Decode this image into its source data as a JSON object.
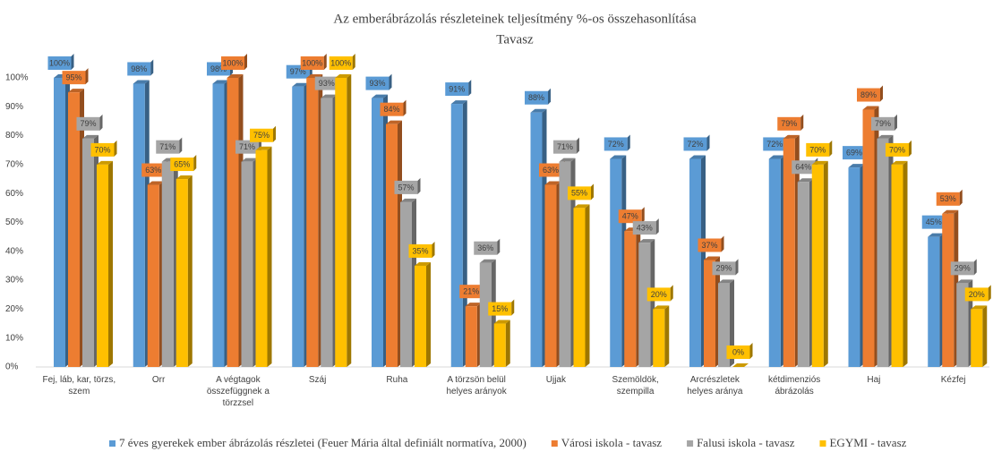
{
  "chart_data": {
    "type": "bar",
    "title": "Az emberábrázolás részleteinek teljesítmény %-os összehasonlítása",
    "subtitle": "Tavasz",
    "categories": [
      "Fej, láb, kar, törzs, szem",
      "Orr",
      "A végtagok összefüggnek a törzzsel",
      "Száj",
      "Ruha",
      "A törzsön belül helyes arányok",
      "Ujjak",
      "Szemöldök, szempilla",
      "Arcrészletek helyes aránya",
      "kétdimenziós ábrázolás",
      "Haj",
      "Kézfej"
    ],
    "series": [
      {
        "name": "7 éves gyerekek ember ábrázolás részletei (Feuer Mária által definiált normatíva, 2000)",
        "color": "#5b9bd5",
        "values": [
          100,
          98,
          98,
          97,
          93,
          91,
          88,
          72,
          72,
          72,
          69,
          45
        ],
        "value_labels": [
          "100%",
          "98%",
          "98%",
          "97%",
          "93%",
          "91%",
          "88%",
          "72%",
          "72%",
          "72%",
          "69%",
          "45%"
        ]
      },
      {
        "name": "Városi iskola - tavasz",
        "color": "#ed7d31",
        "values": [
          95,
          63,
          100,
          100,
          84,
          21,
          63,
          47,
          37,
          79,
          89,
          53
        ],
        "value_labels": [
          "95%",
          "63%",
          "100%",
          "100%",
          "84%",
          "21%",
          "63%",
          "47%",
          "37%",
          "79%",
          "89%",
          "53%"
        ]
      },
      {
        "name": "Falusi iskola - tavasz",
        "color": "#a5a5a5",
        "values": [
          79,
          71,
          71,
          93,
          57,
          36,
          71,
          43,
          29,
          64,
          79,
          29
        ],
        "value_labels": [
          "79%",
          "71%",
          "71%",
          "93%",
          "57%",
          "36%",
          "71%",
          "43%",
          "29%",
          "64%",
          "79%",
          "29%"
        ]
      },
      {
        "name": "EGYMI - tavasz",
        "color": "#ffc000",
        "values": [
          70,
          65,
          75,
          100,
          35,
          15,
          55,
          20,
          0,
          70,
          70,
          20
        ],
        "value_labels": [
          "70%",
          "65%",
          "75%",
          "100%",
          "35%",
          "15%",
          "55%",
          "20%",
          "0%",
          "70%",
          "70%",
          "20%"
        ]
      }
    ],
    "ylim": [
      0,
      100
    ],
    "yticks": [
      {
        "value": 0,
        "label": "0%"
      },
      {
        "value": 10,
        "label": "10%"
      },
      {
        "value": 20,
        "label": "20%"
      },
      {
        "value": 30,
        "label": "30%"
      },
      {
        "value": 40,
        "label": "40%"
      },
      {
        "value": 50,
        "label": "50%"
      },
      {
        "value": 60,
        "label": "60%"
      },
      {
        "value": 70,
        "label": "70%"
      },
      {
        "value": 80,
        "label": "80%"
      },
      {
        "value": 90,
        "label": "90%"
      },
      {
        "value": 100,
        "label": "100%"
      }
    ],
    "grid": false
  }
}
